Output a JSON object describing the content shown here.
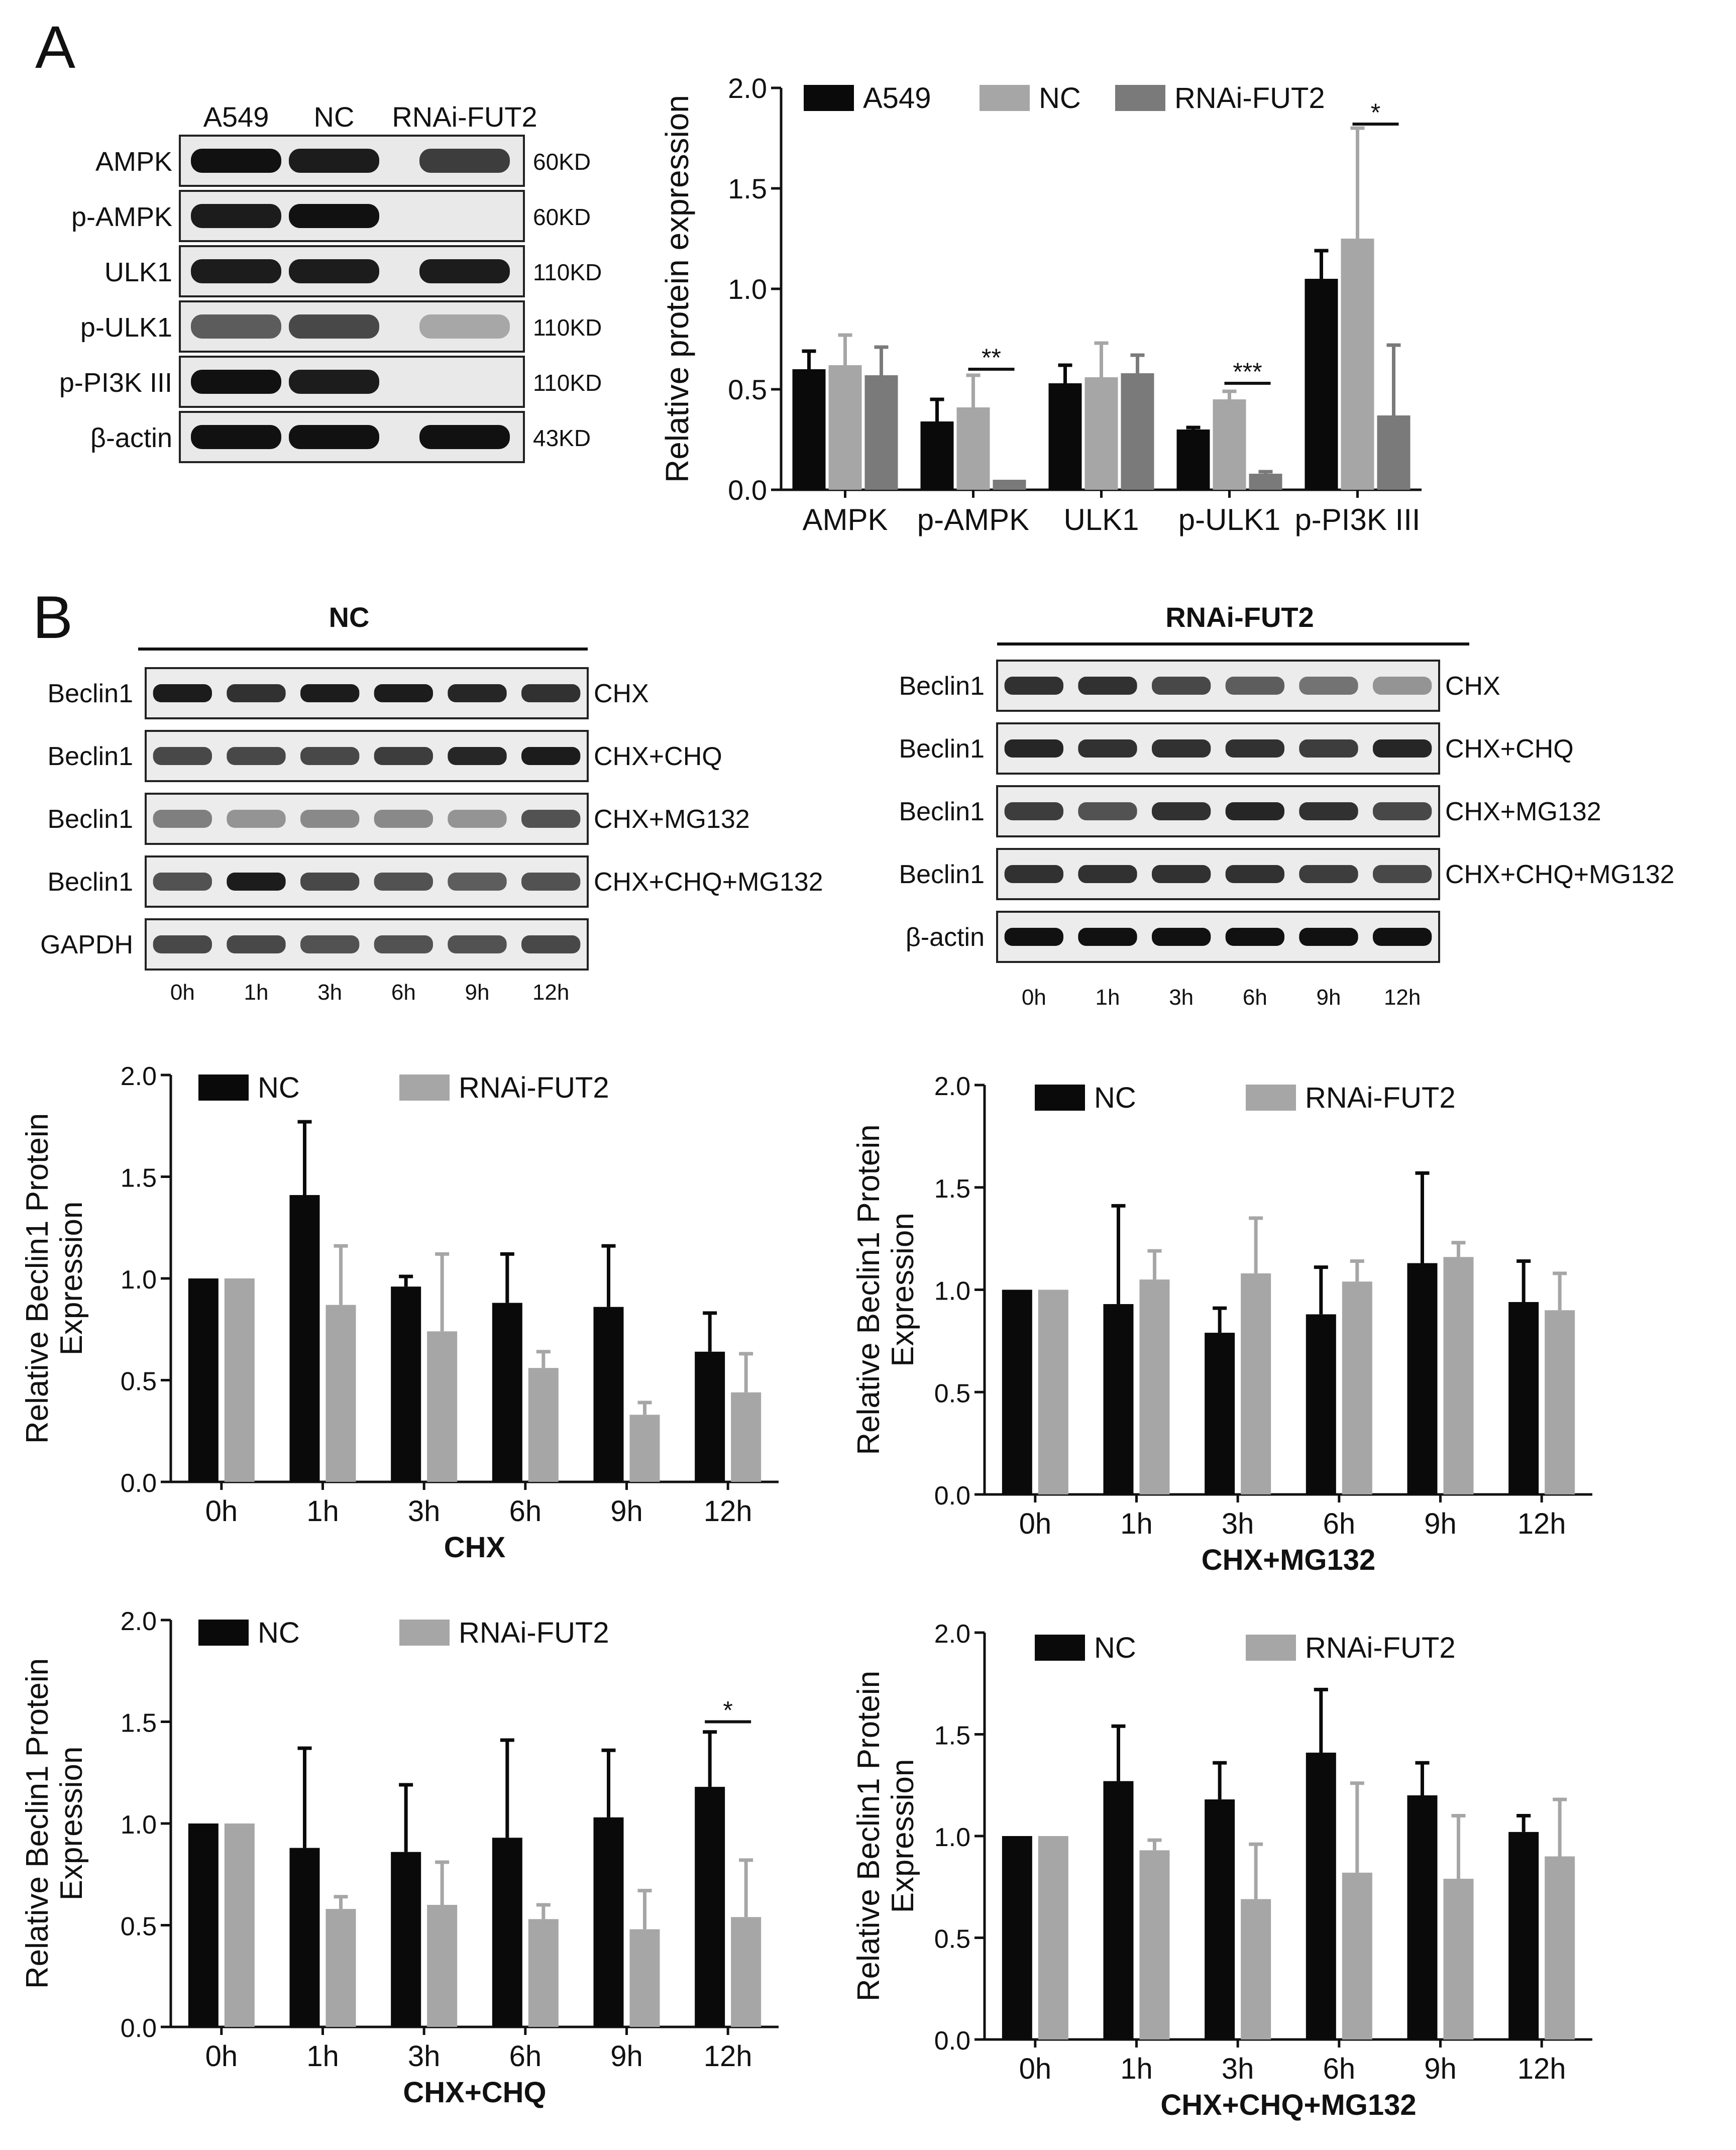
{
  "panelA": {
    "label": "A",
    "blot": {
      "lanes": [
        "A549",
        "NC",
        "RNAi-FUT2"
      ],
      "rows": [
        {
          "protein": "AMPK",
          "size": "60KD",
          "intensity": [
            1.0,
            0.95,
            0.8
          ]
        },
        {
          "protein": "p-AMPK",
          "size": "60KD",
          "intensity": [
            0.95,
            1.0,
            0.0
          ]
        },
        {
          "protein": "ULK1",
          "size": "110KD",
          "intensity": [
            0.95,
            0.95,
            0.95
          ]
        },
        {
          "protein": "p-ULK1",
          "size": "110KD",
          "intensity": [
            0.65,
            0.75,
            0.3
          ]
        },
        {
          "protein": "p-PI3K III",
          "size": "110KD",
          "intensity": [
            1.0,
            0.95,
            0.0
          ]
        },
        {
          "protein": "β-actin",
          "size": "43KD",
          "intensity": [
            1.0,
            1.0,
            1.0
          ]
        }
      ]
    }
  },
  "panelB": {
    "label": "B",
    "blots": [
      {
        "title": "NC",
        "timepoints": [
          "0h",
          "1h",
          "3h",
          "6h",
          "9h",
          "12h"
        ],
        "rows": [
          {
            "protein": "Beclin1",
            "condition": "CHX",
            "intensity": [
              0.95,
              0.85,
              0.95,
              0.95,
              0.9,
              0.85
            ]
          },
          {
            "protein": "Beclin1",
            "condition": "CHX+CHQ",
            "intensity": [
              0.75,
              0.75,
              0.75,
              0.8,
              0.9,
              0.95
            ]
          },
          {
            "protein": "Beclin1",
            "condition": "CHX+MG132",
            "intensity": [
              0.5,
              0.4,
              0.45,
              0.45,
              0.4,
              0.7
            ]
          },
          {
            "protein": "Beclin1",
            "condition": "CHX+CHQ+MG132",
            "intensity": [
              0.7,
              0.95,
              0.75,
              0.7,
              0.65,
              0.7
            ]
          },
          {
            "protein": "GAPDH",
            "condition": "",
            "intensity": [
              0.75,
              0.75,
              0.7,
              0.7,
              0.7,
              0.75
            ]
          }
        ]
      },
      {
        "title": "RNAi-FUT2",
        "timepoints": [
          "0h",
          "1h",
          "3h",
          "6h",
          "9h",
          "12h"
        ],
        "rows": [
          {
            "protein": "Beclin1",
            "condition": "CHX",
            "intensity": [
              0.85,
              0.85,
              0.75,
              0.65,
              0.55,
              0.4
            ]
          },
          {
            "protein": "Beclin1",
            "condition": "CHX+CHQ",
            "intensity": [
              0.9,
              0.85,
              0.85,
              0.85,
              0.8,
              0.9
            ]
          },
          {
            "protein": "Beclin1",
            "condition": "CHX+MG132",
            "intensity": [
              0.8,
              0.7,
              0.85,
              0.9,
              0.85,
              0.75
            ]
          },
          {
            "protein": "Beclin1",
            "condition": "CHX+CHQ+MG132",
            "intensity": [
              0.85,
              0.85,
              0.85,
              0.85,
              0.8,
              0.75
            ]
          },
          {
            "protein": "β-actin",
            "condition": "",
            "intensity": [
              1.0,
              1.0,
              1.0,
              1.0,
              1.0,
              1.0
            ]
          }
        ]
      }
    ]
  },
  "colors": {
    "black": "#0a0a0a",
    "light_gray": "#a6a6a6",
    "dark_gray": "#7a7a7a"
  },
  "chart_data": [
    {
      "id": "A",
      "type": "bar",
      "title": "",
      "xlabel": "",
      "ylabel": "Relative protein expression",
      "ylim": [
        0,
        2.0
      ],
      "yticks": [
        "0.0",
        "0.5",
        "1.0",
        "1.5",
        "2.0"
      ],
      "categories": [
        "AMPK",
        "p-AMPK",
        "ULK1",
        "p-ULK1",
        "p-PI3K III"
      ],
      "series": [
        {
          "name": "A549",
          "color": "#0a0a0a",
          "values": [
            0.6,
            0.34,
            0.53,
            0.3,
            1.05
          ],
          "errors": [
            0.09,
            0.11,
            0.09,
            0.01,
            0.14
          ]
        },
        {
          "name": "NC",
          "color": "#a6a6a6",
          "values": [
            0.62,
            0.41,
            0.56,
            0.45,
            1.25
          ],
          "errors": [
            0.15,
            0.16,
            0.17,
            0.04,
            0.55
          ]
        },
        {
          "name": "RNAi-FUT2",
          "color": "#7a7a7a",
          "values": [
            0.57,
            0.05,
            0.58,
            0.08,
            0.37
          ],
          "errors": [
            0.14,
            0.0,
            0.09,
            0.01,
            0.35
          ]
        }
      ],
      "annotations": [
        {
          "text": "**",
          "category": "p-AMPK",
          "y": 0.6
        },
        {
          "text": "***",
          "category": "p-ULK1",
          "y": 0.53
        },
        {
          "text": "*",
          "category": "p-PI3K III",
          "y": 1.82
        }
      ]
    },
    {
      "id": "B-CHX",
      "type": "bar",
      "title": "",
      "xlabel": "CHX",
      "ylabel": "Relative Beclin1 Protein Expression",
      "ylim": [
        0,
        2.0
      ],
      "yticks": [
        "0.0",
        "0.5",
        "1.0",
        "1.5",
        "2.0"
      ],
      "categories": [
        "0h",
        "1h",
        "3h",
        "6h",
        "9h",
        "12h"
      ],
      "series": [
        {
          "name": "NC",
          "color": "#0a0a0a",
          "values": [
            1.0,
            1.41,
            0.96,
            0.88,
            0.86,
            0.64
          ],
          "errors": [
            0,
            0.36,
            0.05,
            0.24,
            0.3,
            0.19
          ]
        },
        {
          "name": "RNAi-FUT2",
          "color": "#a6a6a6",
          "values": [
            1.0,
            0.87,
            0.74,
            0.56,
            0.33,
            0.44
          ],
          "errors": [
            0,
            0.29,
            0.38,
            0.08,
            0.06,
            0.19
          ]
        }
      ],
      "annotations": []
    },
    {
      "id": "B-CHX+MG132",
      "type": "bar",
      "title": "",
      "xlabel": "CHX+MG132",
      "ylabel": "Relative Beclin1 Protein Expression",
      "ylim": [
        0,
        2.0
      ],
      "yticks": [
        "0.0",
        "0.5",
        "1.0",
        "1.5",
        "2.0"
      ],
      "categories": [
        "0h",
        "1h",
        "3h",
        "6h",
        "9h",
        "12h"
      ],
      "series": [
        {
          "name": "NC",
          "color": "#0a0a0a",
          "values": [
            1.0,
            0.93,
            0.79,
            0.88,
            1.13,
            0.94
          ],
          "errors": [
            0,
            0.48,
            0.12,
            0.23,
            0.44,
            0.2
          ]
        },
        {
          "name": "RNAi-FUT2",
          "color": "#a6a6a6",
          "values": [
            1.0,
            1.05,
            1.08,
            1.04,
            1.16,
            0.9
          ],
          "errors": [
            0,
            0.14,
            0.27,
            0.1,
            0.07,
            0.18
          ]
        }
      ],
      "annotations": []
    },
    {
      "id": "B-CHX+CHQ",
      "type": "bar",
      "title": "",
      "xlabel": "CHX+CHQ",
      "ylabel": "Relative Beclin1 Protein Expression",
      "ylim": [
        0,
        2.0
      ],
      "yticks": [
        "0.0",
        "0.5",
        "1.0",
        "1.5",
        "2.0"
      ],
      "categories": [
        "0h",
        "1h",
        "3h",
        "6h",
        "9h",
        "12h"
      ],
      "series": [
        {
          "name": "NC",
          "color": "#0a0a0a",
          "values": [
            1.0,
            0.88,
            0.86,
            0.93,
            1.03,
            1.18
          ],
          "errors": [
            0,
            0.49,
            0.33,
            0.48,
            0.33,
            0.27
          ]
        },
        {
          "name": "RNAi-FUT2",
          "color": "#a6a6a6",
          "values": [
            1.0,
            0.58,
            0.6,
            0.53,
            0.48,
            0.54
          ],
          "errors": [
            0,
            0.06,
            0.21,
            0.07,
            0.19,
            0.28
          ]
        }
      ],
      "annotations": [
        {
          "text": "*",
          "category": "12h",
          "y": 1.5
        }
      ]
    },
    {
      "id": "B-CHX+CHQ+MG132",
      "type": "bar",
      "title": "",
      "xlabel": "CHX+CHQ+MG132",
      "ylabel": "Relative Beclin1 Protein Expression",
      "ylim": [
        0,
        2.0
      ],
      "yticks": [
        "0.0",
        "0.5",
        "1.0",
        "1.5",
        "2.0"
      ],
      "categories": [
        "0h",
        "1h",
        "3h",
        "6h",
        "9h",
        "12h"
      ],
      "series": [
        {
          "name": "NC",
          "color": "#0a0a0a",
          "values": [
            1.0,
            1.27,
            1.18,
            1.41,
            1.2,
            1.02
          ],
          "errors": [
            0,
            0.27,
            0.18,
            0.31,
            0.16,
            0.08
          ]
        },
        {
          "name": "RNAi-FUT2",
          "color": "#a6a6a6",
          "values": [
            1.0,
            0.93,
            0.69,
            0.82,
            0.79,
            0.9
          ],
          "errors": [
            0,
            0.05,
            0.27,
            0.44,
            0.31,
            0.28
          ]
        }
      ],
      "annotations": []
    }
  ]
}
